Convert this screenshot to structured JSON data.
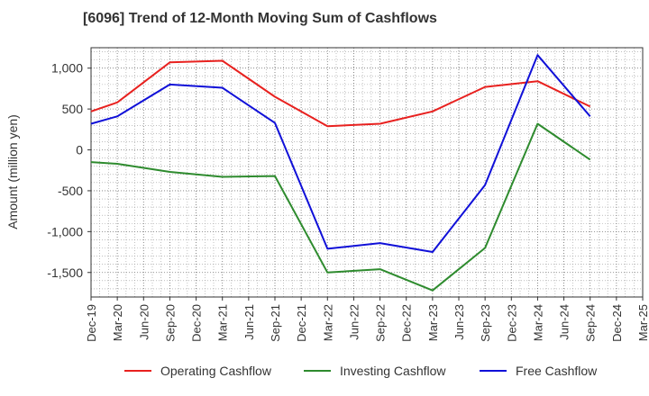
{
  "title": "[6096]  Trend of 12-Month Moving Sum of Cashflows",
  "chart_data": {
    "type": "line",
    "title": "[6096]  Trend of 12-Month Moving Sum of Cashflows",
    "ylabel": "Amount (million yen)",
    "xlabel": "",
    "ylim": [
      -1800,
      1250
    ],
    "yticks": [
      1000,
      500,
      0,
      -500,
      -1000,
      -1500
    ],
    "ytick_labels": [
      "1,000",
      "500",
      "0",
      "-500",
      "-1,000",
      "-1,500"
    ],
    "categories": [
      "Dec-19",
      "Mar-20",
      "Jun-20",
      "Sep-20",
      "Dec-20",
      "Mar-21",
      "Jun-21",
      "Sep-21",
      "Dec-21",
      "Mar-22",
      "Jun-22",
      "Sep-22",
      "Dec-22",
      "Mar-23",
      "Jun-23",
      "Sep-23",
      "Dec-23",
      "Mar-24",
      "Jun-24",
      "Sep-24",
      "Dec-24",
      "Mar-25"
    ],
    "grid": true,
    "legend_position": "bottom",
    "series": [
      {
        "name": "Operating Cashflow",
        "color": "#e8211f",
        "values": [
          470,
          580,
          null,
          1070,
          null,
          1090,
          null,
          650,
          null,
          290,
          null,
          320,
          null,
          470,
          null,
          770,
          null,
          840,
          null,
          530,
          null,
          null
        ]
      },
      {
        "name": "Investing Cashflow",
        "color": "#2e8b2e",
        "values": [
          -150,
          -170,
          null,
          -270,
          null,
          -330,
          null,
          -320,
          null,
          -1500,
          null,
          -1460,
          null,
          -1720,
          null,
          -1200,
          null,
          320,
          null,
          -120,
          null,
          null
        ]
      },
      {
        "name": "Free Cashflow",
        "color": "#1010d8",
        "values": [
          320,
          410,
          null,
          800,
          null,
          760,
          null,
          330,
          null,
          -1210,
          null,
          -1140,
          null,
          -1250,
          null,
          -430,
          null,
          1160,
          null,
          410,
          null,
          null
        ]
      }
    ]
  }
}
